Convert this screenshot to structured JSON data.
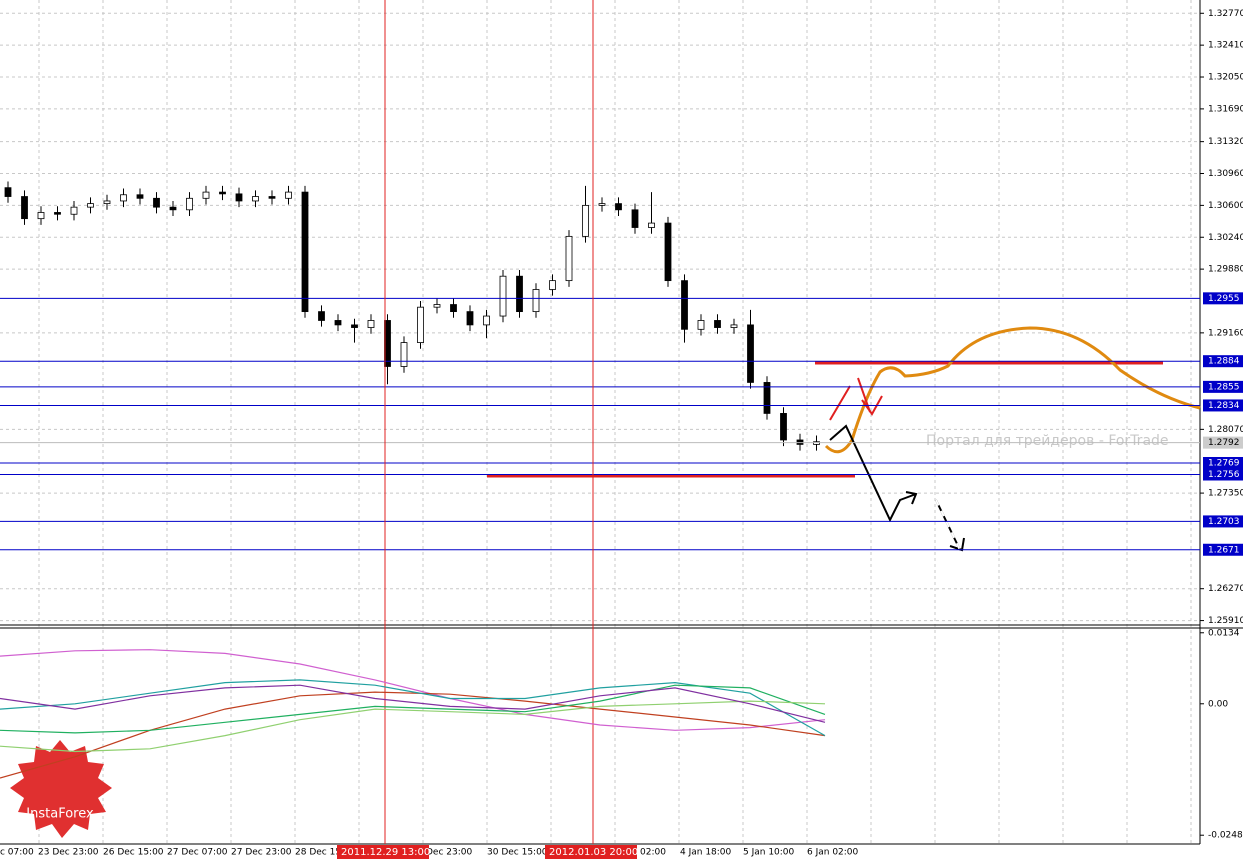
{
  "chart_data": [
    {
      "type": "candlestick",
      "x_labels": [
        "c 07:00",
        "23 Dec 23:00",
        "26 Dec 15:00",
        "27 Dec 07:00",
        "27 Dec 23:00",
        "28 Dec 15",
        "Dec 23:00",
        "30 Dec 15:00",
        "02:00",
        "4 Jan 18:00",
        "5 Jan 10:00",
        "6 Jan 02:00"
      ],
      "vlines": [
        "2011.12.29 13:00",
        "2012.01.03 20:00"
      ],
      "open": [
        1.308,
        1.307,
        1.3045,
        1.3052,
        1.305,
        1.3058,
        1.3062,
        1.3065,
        1.3072,
        1.3068,
        1.3058,
        1.3055,
        1.3068,
        1.3075,
        1.3073,
        1.3065,
        1.307,
        1.3068,
        1.3075,
        1.294,
        1.293,
        1.2925,
        1.2922,
        1.293,
        1.2878,
        1.2905,
        1.2945,
        1.2948,
        1.294,
        1.2925,
        1.2935,
        1.298,
        1.294,
        1.2965,
        1.2975,
        1.3025,
        1.306,
        1.3062,
        1.3055,
        1.3035,
        1.304,
        1.2975,
        1.292,
        1.293,
        1.2922,
        1.2925,
        1.286,
        1.2825,
        1.2795,
        1.279
      ],
      "high": [
        1.3087,
        1.3077,
        1.3059,
        1.3059,
        1.3065,
        1.3069,
        1.3072,
        1.3079,
        1.3079,
        1.3075,
        1.3065,
        1.3075,
        1.3082,
        1.3082,
        1.308,
        1.3077,
        1.3077,
        1.3082,
        1.3082,
        1.2947,
        1.2937,
        1.2932,
        1.2937,
        1.2937,
        1.2912,
        1.2952,
        1.2955,
        1.2955,
        1.2947,
        1.2942,
        1.2987,
        1.2987,
        1.2972,
        1.2982,
        1.3032,
        1.3082,
        1.3069,
        1.3069,
        1.3062,
        1.3075,
        1.3047,
        1.2982,
        1.2937,
        1.2937,
        1.2932,
        1.2942,
        1.2867,
        1.2832,
        1.2802,
        1.28
      ],
      "low": [
        1.3063,
        1.3038,
        1.3038,
        1.3043,
        1.3043,
        1.3051,
        1.3055,
        1.3058,
        1.3061,
        1.3051,
        1.3048,
        1.3048,
        1.3061,
        1.3066,
        1.3058,
        1.3058,
        1.3061,
        1.3061,
        1.2933,
        1.2923,
        1.2918,
        1.2905,
        1.2915,
        1.2858,
        1.2871,
        1.2898,
        1.2938,
        1.2933,
        1.2918,
        1.291,
        1.2928,
        1.2933,
        1.2933,
        1.2958,
        1.2968,
        1.3018,
        1.3053,
        1.3048,
        1.3028,
        1.3028,
        1.2968,
        1.2905,
        1.2913,
        1.2915,
        1.2915,
        1.2853,
        1.2818,
        1.2788,
        1.2783,
        1.2783
      ],
      "close": [
        1.307,
        1.3045,
        1.3052,
        1.305,
        1.3058,
        1.3062,
        1.3065,
        1.3072,
        1.3068,
        1.3058,
        1.3055,
        1.3068,
        1.3075,
        1.3073,
        1.3065,
        1.307,
        1.3068,
        1.3075,
        1.294,
        1.293,
        1.2925,
        1.2922,
        1.293,
        1.2878,
        1.2905,
        1.2945,
        1.2948,
        1.294,
        1.2925,
        1.2935,
        1.298,
        1.294,
        1.2965,
        1.2975,
        1.3025,
        1.306,
        1.3062,
        1.3055,
        1.3035,
        1.304,
        1.2975,
        1.292,
        1.293,
        1.2922,
        1.2925,
        1.286,
        1.2825,
        1.2795,
        1.279,
        1.2793
      ],
      "ylim": [
        1.2586,
        1.3292
      ],
      "yticks": [
        {
          "value": 1.3277,
          "label": "1.32770"
        },
        {
          "value": 1.3241,
          "label": "1.32410"
        },
        {
          "value": 1.3205,
          "label": "1.32050"
        },
        {
          "value": 1.3169,
          "label": "1.31690"
        },
        {
          "value": 1.3132,
          "label": "1.31320"
        },
        {
          "value": 1.3096,
          "label": "1.30960"
        },
        {
          "value": 1.306,
          "label": "1.30600"
        },
        {
          "value": 1.3024,
          "label": "1.30240"
        },
        {
          "value": 1.2988,
          "label": "1.29880"
        },
        {
          "value": 1.2916,
          "label": "1.29160"
        },
        {
          "value": 1.2807,
          "label": "1.28070"
        },
        {
          "value": 1.2735,
          "label": "1.27350"
        },
        {
          "value": 1.2627,
          "label": "1.26270"
        },
        {
          "value": 1.2591,
          "label": "1.25910"
        }
      ],
      "levels": [
        1.2955,
        1.2884,
        1.2855,
        1.2834,
        1.2769,
        1.2756,
        1.2703,
        1.2671
      ],
      "current_price": 1.2792,
      "watermark": "Портал для трейдеров - ForTrade",
      "logo": "InstaForex"
    },
    {
      "type": "line",
      "ylim": [
        -0.0291,
        0.0143
      ],
      "yticks": [
        0.0134,
        {
          "value": 0,
          "label": "0.00"
        },
        -0.0248
      ],
      "series": [
        {
          "color": "#d060d0",
          "values": [
            0.009,
            0.01,
            0.0102,
            0.0095,
            0.0075,
            0.0045,
            0.001,
            -0.002,
            -0.004,
            -0.005,
            -0.0045,
            -0.003
          ]
        },
        {
          "color": "#c04020",
          "values": [
            -0.014,
            -0.01,
            -0.005,
            -0.001,
            0.0015,
            0.0022,
            0.0018,
            0.0005,
            -0.001,
            -0.0025,
            -0.004,
            -0.006
          ]
        },
        {
          "color": "#20a0a0",
          "values": [
            -0.001,
            0.0,
            0.002,
            0.004,
            0.0045,
            0.0035,
            0.001,
            0.001,
            0.003,
            0.004,
            0.002,
            -0.006
          ]
        },
        {
          "color": "#20b060",
          "values": [
            -0.005,
            -0.0055,
            -0.005,
            -0.0035,
            -0.002,
            -0.0005,
            -0.001,
            -0.0015,
            0.0005,
            0.0035,
            0.003,
            -0.002
          ]
        },
        {
          "color": "#90d070",
          "values": [
            -0.008,
            -0.009,
            -0.0085,
            -0.006,
            -0.003,
            -0.001,
            -0.0015,
            -0.002,
            -0.0005,
            0.0,
            0.0005,
            0.0
          ]
        },
        {
          "color": "#8030a0",
          "values": [
            0.001,
            -0.001,
            0.0015,
            0.003,
            0.0035,
            0.001,
            -0.0005,
            -0.001,
            0.0015,
            0.003,
            0.0,
            -0.0035
          ]
        }
      ]
    }
  ]
}
